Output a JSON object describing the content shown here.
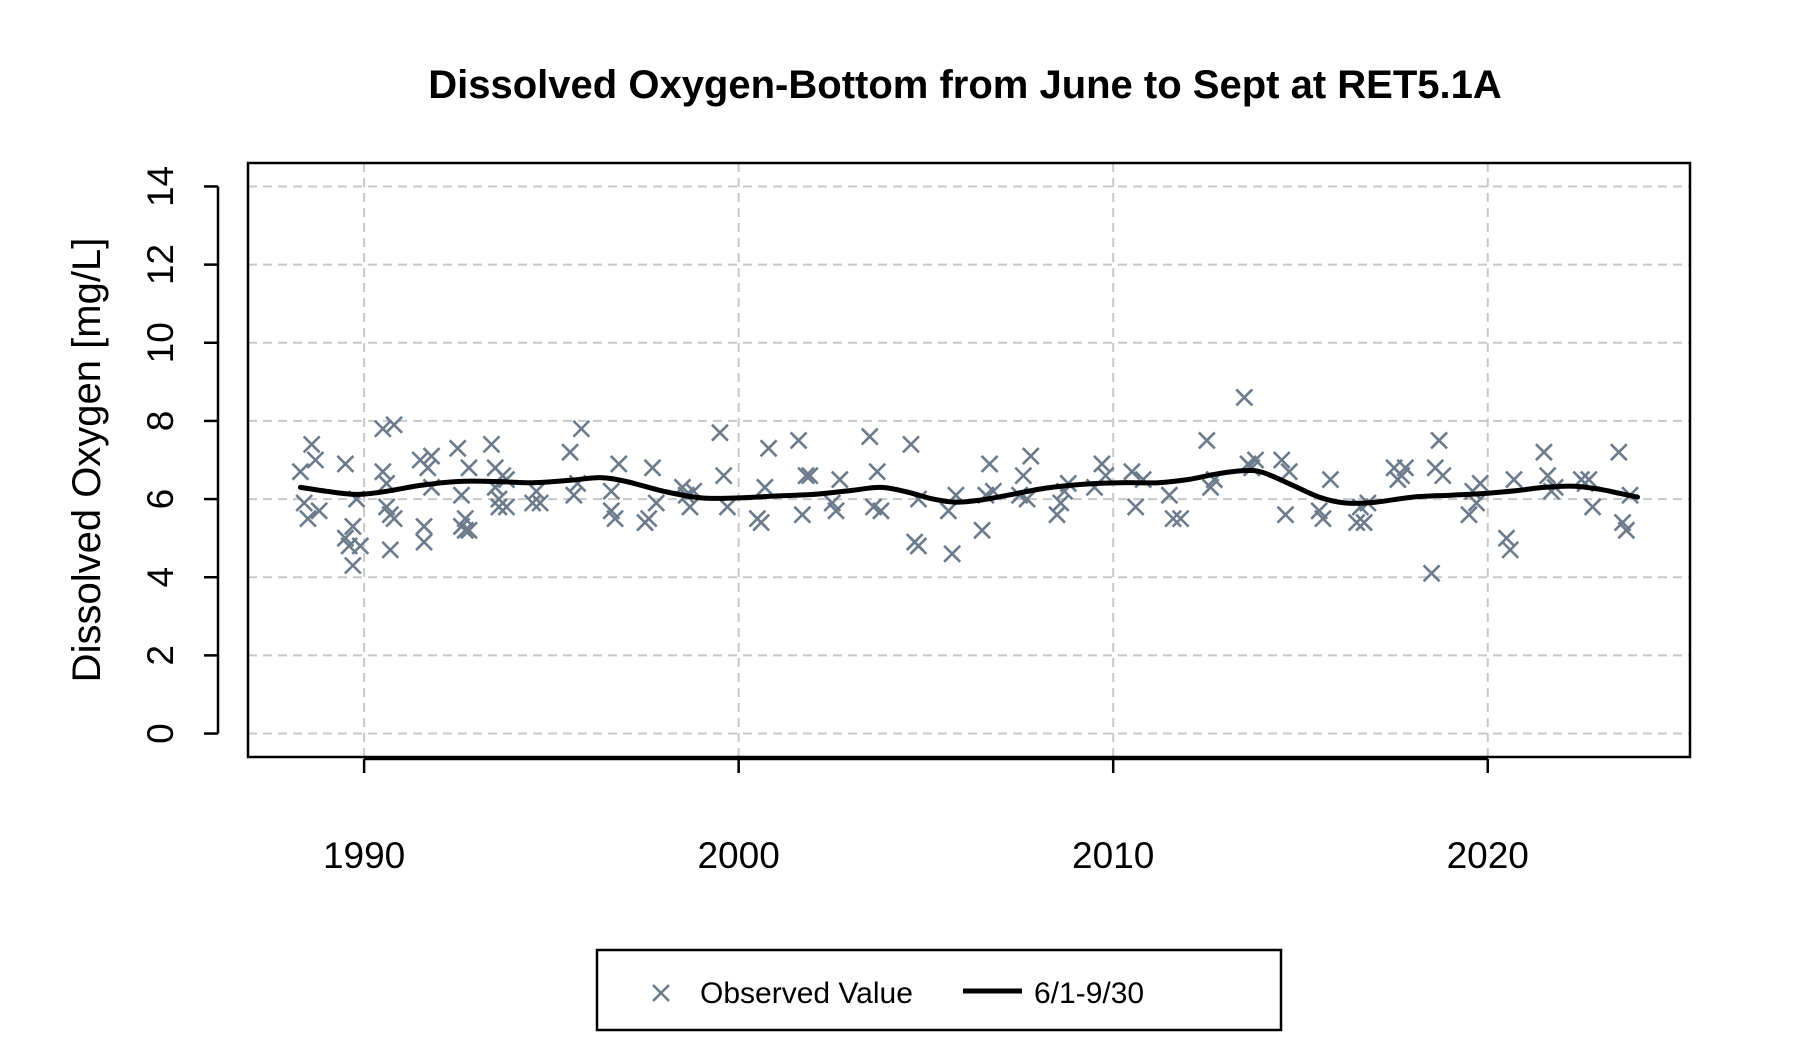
{
  "colors": {
    "observed": "#6B7B8C",
    "trend": "#000000",
    "grid": "#C8C8C8",
    "axis": "#000000",
    "background": "#FFFFFF"
  },
  "chart_data": {
    "type": "scatter",
    "title": "Dissolved Oxygen-Bottom from June to Sept at RET5.1A",
    "xlabel": "",
    "ylabel": "Dissolved Oxygen [mg/L]",
    "xlim": [
      1986.9,
      2025.4
    ],
    "ylim": [
      -0.6,
      14.6
    ],
    "xticks": [
      1990,
      2000,
      2010,
      2020
    ],
    "xtick_labels": [
      "1990",
      "2000",
      "2010",
      "2020"
    ],
    "yticks": [
      0,
      2,
      4,
      6,
      8,
      10,
      12,
      14
    ],
    "ytick_labels": [
      "0",
      "2",
      "4",
      "6",
      "8",
      "10",
      "12",
      "14"
    ],
    "grid": true,
    "legend": {
      "position": "bottom-center",
      "entries": [
        "Observed Value",
        "6/1-9/30"
      ]
    },
    "series": [
      {
        "name": "Observed Value",
        "marker": "x",
        "points": [
          [
            1988.3,
            6.7
          ],
          [
            1988.4,
            5.9
          ],
          [
            1988.5,
            5.5
          ],
          [
            1988.6,
            7.4
          ],
          [
            1988.7,
            7.0
          ],
          [
            1988.8,
            5.7
          ],
          [
            1989.5,
            5.0
          ],
          [
            1989.5,
            6.9
          ],
          [
            1989.6,
            4.8
          ],
          [
            1989.7,
            4.3
          ],
          [
            1989.7,
            5.3
          ],
          [
            1989.8,
            6.0
          ],
          [
            1989.9,
            4.8
          ],
          [
            1990.5,
            6.7
          ],
          [
            1990.5,
            7.8
          ],
          [
            1990.6,
            6.4
          ],
          [
            1990.6,
            5.8
          ],
          [
            1990.7,
            5.6
          ],
          [
            1990.7,
            4.7
          ],
          [
            1990.8,
            5.5
          ],
          [
            1990.8,
            7.9
          ],
          [
            1991.5,
            7.0
          ],
          [
            1991.6,
            5.3
          ],
          [
            1991.6,
            4.9
          ],
          [
            1991.7,
            6.8
          ],
          [
            1991.8,
            7.1
          ],
          [
            1991.8,
            6.3
          ],
          [
            1992.5,
            7.3
          ],
          [
            1992.6,
            6.1
          ],
          [
            1992.6,
            5.3
          ],
          [
            1992.7,
            5.2
          ],
          [
            1992.7,
            5.5
          ],
          [
            1992.8,
            5.2
          ],
          [
            1992.8,
            6.8
          ],
          [
            1993.4,
            7.4
          ],
          [
            1993.5,
            6.8
          ],
          [
            1993.5,
            6.3
          ],
          [
            1993.6,
            6.0
          ],
          [
            1993.6,
            5.8
          ],
          [
            1993.7,
            6.6
          ],
          [
            1993.8,
            5.8
          ],
          [
            1993.8,
            6.5
          ],
          [
            1994.5,
            5.9
          ],
          [
            1994.6,
            6.2
          ],
          [
            1994.7,
            5.9
          ],
          [
            1995.5,
            7.2
          ],
          [
            1995.6,
            6.1
          ],
          [
            1995.7,
            6.4
          ],
          [
            1995.8,
            7.8
          ],
          [
            1996.6,
            6.2
          ],
          [
            1996.6,
            5.7
          ],
          [
            1996.7,
            5.5
          ],
          [
            1996.8,
            6.9
          ],
          [
            1997.5,
            5.4
          ],
          [
            1997.6,
            5.5
          ],
          [
            1997.7,
            6.8
          ],
          [
            1997.8,
            5.9
          ],
          [
            1998.5,
            6.3
          ],
          [
            1998.6,
            6.1
          ],
          [
            1998.7,
            5.8
          ],
          [
            1998.8,
            6.2
          ],
          [
            1999.5,
            7.7
          ],
          [
            1999.6,
            6.6
          ],
          [
            1999.7,
            5.8
          ],
          [
            2000.5,
            5.5
          ],
          [
            2000.6,
            5.4
          ],
          [
            2000.7,
            6.3
          ],
          [
            2000.8,
            7.3
          ],
          [
            2001.6,
            7.5
          ],
          [
            2001.7,
            5.6
          ],
          [
            2001.8,
            6.6
          ],
          [
            2001.9,
            6.6
          ],
          [
            2002.5,
            5.9
          ],
          [
            2002.6,
            5.7
          ],
          [
            2002.7,
            6.5
          ],
          [
            2003.5,
            7.6
          ],
          [
            2003.6,
            5.8
          ],
          [
            2003.7,
            6.7
          ],
          [
            2003.8,
            5.7
          ],
          [
            2004.6,
            7.4
          ],
          [
            2004.7,
            4.9
          ],
          [
            2004.8,
            4.8
          ],
          [
            2004.8,
            6.0
          ],
          [
            2005.6,
            5.7
          ],
          [
            2005.7,
            4.6
          ],
          [
            2005.8,
            6.1
          ],
          [
            2006.5,
            5.2
          ],
          [
            2006.6,
            6.1
          ],
          [
            2006.7,
            6.9
          ],
          [
            2006.8,
            6.2
          ],
          [
            2007.5,
            6.1
          ],
          [
            2007.6,
            6.6
          ],
          [
            2007.7,
            6.0
          ],
          [
            2007.8,
            7.1
          ],
          [
            2008.5,
            5.6
          ],
          [
            2008.6,
            5.9
          ],
          [
            2008.7,
            6.2
          ],
          [
            2008.8,
            6.4
          ],
          [
            2009.5,
            6.3
          ],
          [
            2009.7,
            6.9
          ],
          [
            2009.8,
            6.6
          ],
          [
            2010.5,
            6.7
          ],
          [
            2010.6,
            5.8
          ],
          [
            2010.8,
            6.5
          ],
          [
            2011.5,
            6.1
          ],
          [
            2011.6,
            5.5
          ],
          [
            2011.8,
            5.5
          ],
          [
            2012.5,
            7.5
          ],
          [
            2012.6,
            6.3
          ],
          [
            2012.7,
            6.5
          ],
          [
            2013.5,
            8.6
          ],
          [
            2013.6,
            6.9
          ],
          [
            2013.7,
            6.8
          ],
          [
            2013.8,
            7.0
          ],
          [
            2014.5,
            7.0
          ],
          [
            2014.6,
            5.6
          ],
          [
            2014.7,
            6.7
          ],
          [
            2015.5,
            5.7
          ],
          [
            2015.6,
            5.5
          ],
          [
            2015.8,
            6.5
          ],
          [
            2016.5,
            5.4
          ],
          [
            2016.6,
            5.8
          ],
          [
            2016.7,
            5.4
          ],
          [
            2016.8,
            5.9
          ],
          [
            2017.5,
            6.8
          ],
          [
            2017.6,
            6.5
          ],
          [
            2017.7,
            6.6
          ],
          [
            2017.8,
            6.8
          ],
          [
            2018.5,
            4.1
          ],
          [
            2018.6,
            6.8
          ],
          [
            2018.7,
            7.5
          ],
          [
            2018.8,
            6.6
          ],
          [
            2019.5,
            5.6
          ],
          [
            2019.6,
            6.2
          ],
          [
            2019.7,
            5.9
          ],
          [
            2019.8,
            6.4
          ],
          [
            2020.5,
            5.0
          ],
          [
            2020.6,
            4.7
          ],
          [
            2020.7,
            6.5
          ],
          [
            2021.5,
            7.2
          ],
          [
            2021.6,
            6.6
          ],
          [
            2021.7,
            6.2
          ],
          [
            2021.8,
            6.3
          ],
          [
            2022.5,
            6.5
          ],
          [
            2022.6,
            6.4
          ],
          [
            2022.7,
            6.5
          ],
          [
            2022.8,
            5.8
          ],
          [
            2023.5,
            7.2
          ],
          [
            2023.6,
            5.4
          ],
          [
            2023.7,
            5.2
          ],
          [
            2023.8,
            6.1
          ]
        ]
      },
      {
        "name": "6/1-9/30",
        "marker": "line",
        "points": [
          [
            1988.3,
            6.3
          ],
          [
            1989.0,
            6.2
          ],
          [
            1989.8,
            6.12
          ],
          [
            1990.6,
            6.2
          ],
          [
            1991.5,
            6.35
          ],
          [
            1992.5,
            6.45
          ],
          [
            1993.5,
            6.45
          ],
          [
            1994.5,
            6.42
          ],
          [
            1995.5,
            6.48
          ],
          [
            1996.3,
            6.55
          ],
          [
            1997.0,
            6.45
          ],
          [
            1998.0,
            6.2
          ],
          [
            1999.0,
            6.03
          ],
          [
            2000.0,
            6.03
          ],
          [
            2001.0,
            6.08
          ],
          [
            2002.0,
            6.12
          ],
          [
            2003.0,
            6.22
          ],
          [
            2003.8,
            6.3
          ],
          [
            2004.5,
            6.18
          ],
          [
            2005.2,
            6.0
          ],
          [
            2005.8,
            5.92
          ],
          [
            2006.5,
            5.98
          ],
          [
            2007.3,
            6.12
          ],
          [
            2008.2,
            6.28
          ],
          [
            2009.2,
            6.38
          ],
          [
            2010.2,
            6.42
          ],
          [
            2011.2,
            6.42
          ],
          [
            2012.0,
            6.5
          ],
          [
            2012.8,
            6.65
          ],
          [
            2013.5,
            6.73
          ],
          [
            2014.0,
            6.68
          ],
          [
            2014.8,
            6.35
          ],
          [
            2015.5,
            6.05
          ],
          [
            2016.2,
            5.9
          ],
          [
            2017.0,
            5.92
          ],
          [
            2018.0,
            6.05
          ],
          [
            2019.0,
            6.1
          ],
          [
            2020.0,
            6.15
          ],
          [
            2020.8,
            6.22
          ],
          [
            2021.5,
            6.3
          ],
          [
            2022.3,
            6.33
          ],
          [
            2023.0,
            6.25
          ],
          [
            2023.5,
            6.15
          ],
          [
            2024.0,
            6.05
          ]
        ]
      }
    ]
  }
}
